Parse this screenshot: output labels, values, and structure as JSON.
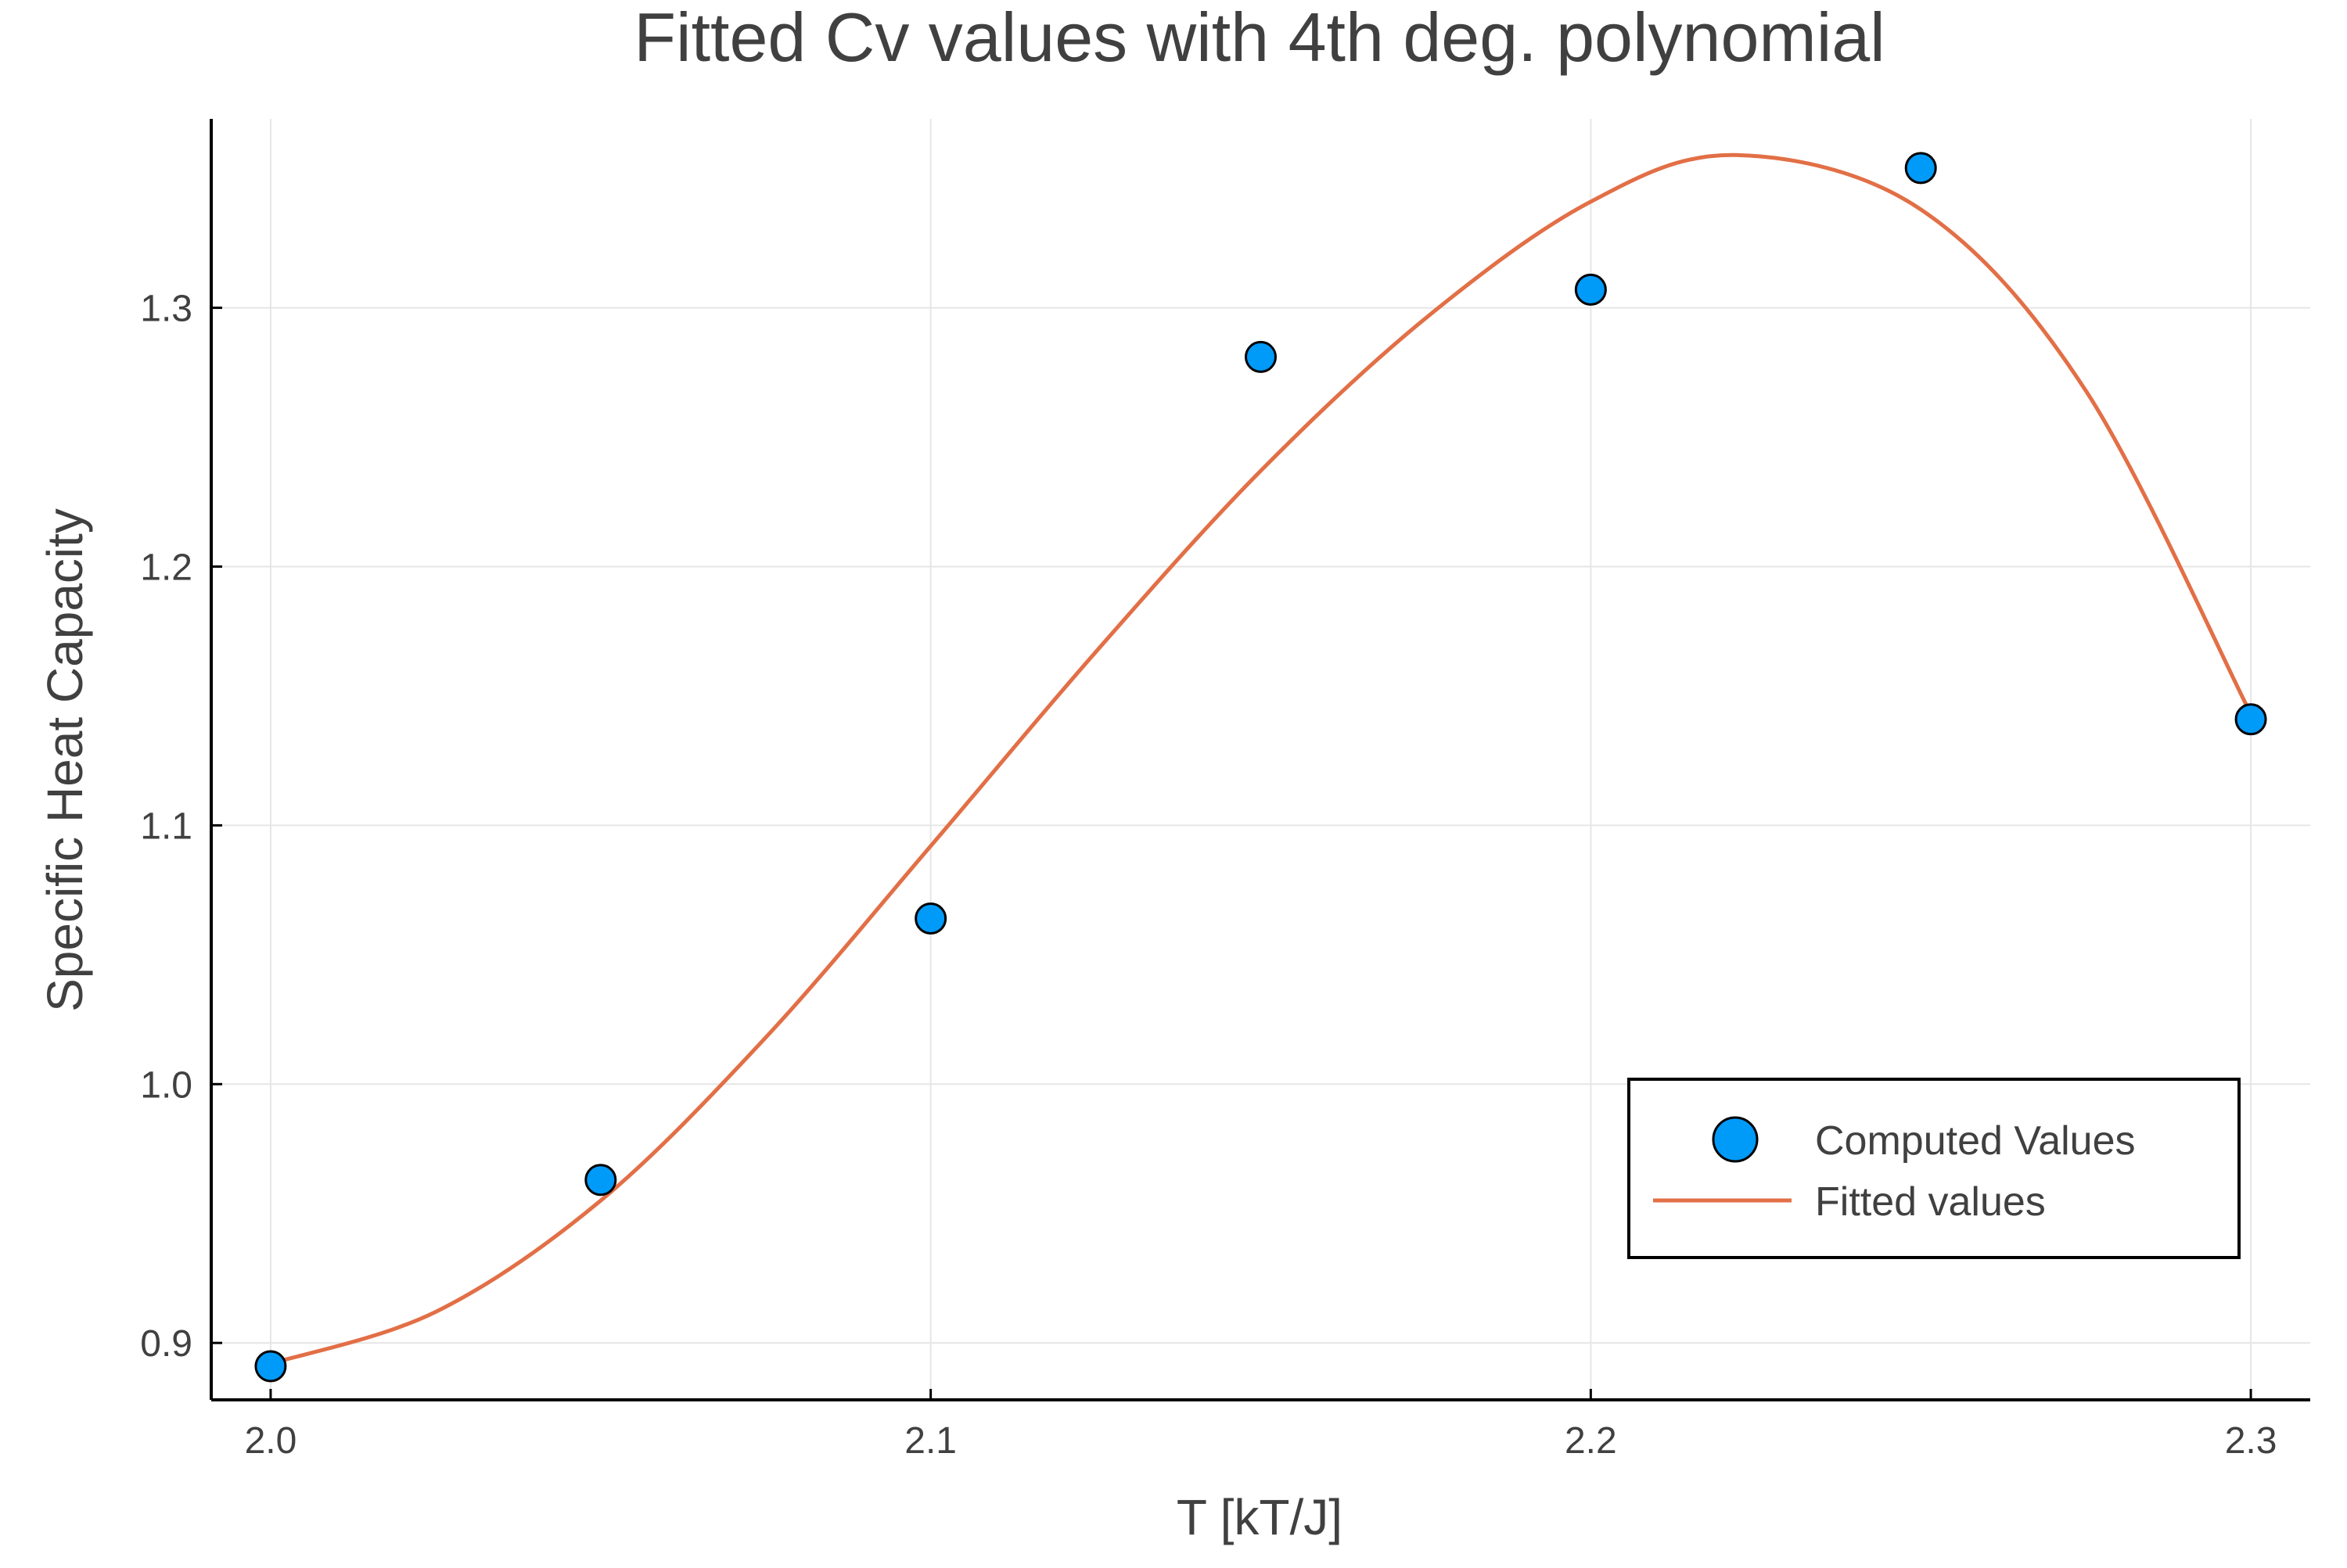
{
  "chart_data": {
    "type": "scatter",
    "title": "Fitted Cv values with 4th deg. polynomial",
    "xlabel": "T [kT/J]",
    "ylabel": "Specific Heat Capacity",
    "xlim": [
      1.991,
      2.309
    ],
    "ylim": [
      0.878,
      1.373
    ],
    "xticks": [
      2.0,
      2.1,
      2.2,
      2.3
    ],
    "xtick_labels": [
      "2.0",
      "2.1",
      "2.2",
      "2.3"
    ],
    "yticks": [
      0.9,
      1.0,
      1.1,
      1.2,
      1.3
    ],
    "ytick_labels": [
      "0.9",
      "1.0",
      "1.1",
      "1.2",
      "1.3"
    ],
    "grid": true,
    "legend_position": "bottom-right",
    "series": [
      {
        "name": "Computed Values",
        "kind": "scatter",
        "color": "#009af9",
        "x": [
          2.0,
          2.05,
          2.1,
          2.15,
          2.2,
          2.25,
          2.3
        ],
        "y": [
          0.891,
          0.963,
          1.064,
          1.281,
          1.307,
          1.354,
          1.141
        ]
      },
      {
        "name": "Fitted values",
        "kind": "line",
        "color": "#e26f46",
        "x": [
          2.0,
          2.025,
          2.05,
          2.075,
          2.1,
          2.125,
          2.15,
          2.175,
          2.2,
          2.222,
          2.25,
          2.275,
          2.3
        ],
        "y": [
          0.892,
          0.912,
          0.955,
          1.018,
          1.092,
          1.167,
          1.237,
          1.296,
          1.341,
          1.359,
          1.338,
          1.268,
          1.143
        ]
      }
    ]
  }
}
